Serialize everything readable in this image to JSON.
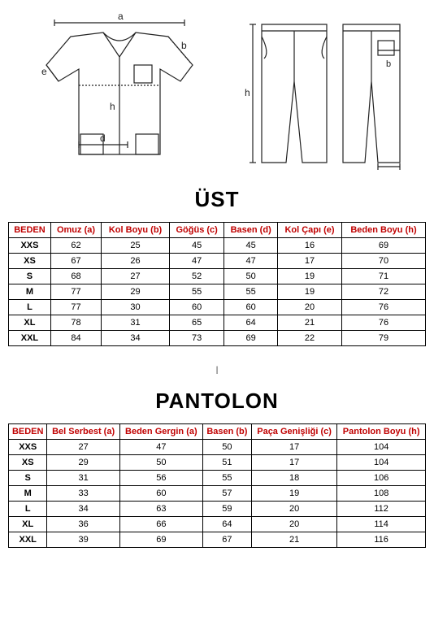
{
  "section1": {
    "title": "ÜST"
  },
  "section2": {
    "title": "PANTOLON"
  },
  "ustTable": {
    "headers": [
      "BEDEN",
      "Omuz (a)",
      "Kol Boyu (b)",
      "Göğüs (c)",
      "Basen (d)",
      "Kol Çapı (e)",
      "Beden Boyu (h)"
    ],
    "rows": [
      [
        "XXS",
        "62",
        "25",
        "45",
        "45",
        "16",
        "69"
      ],
      [
        "XS",
        "67",
        "26",
        "47",
        "47",
        "17",
        "70"
      ],
      [
        "S",
        "68",
        "27",
        "52",
        "50",
        "19",
        "71"
      ],
      [
        "M",
        "77",
        "29",
        "55",
        "55",
        "19",
        "72"
      ],
      [
        "L",
        "77",
        "30",
        "60",
        "60",
        "20",
        "76"
      ],
      [
        "XL",
        "78",
        "31",
        "65",
        "64",
        "21",
        "76"
      ],
      [
        "XXL",
        "84",
        "34",
        "73",
        "69",
        "22",
        "79"
      ]
    ]
  },
  "pantolonTable": {
    "headers": [
      "BEDEN",
      "Bel Serbest (a)",
      "Beden Gergin (a)",
      "Basen (b)",
      "Paça Genişliği (c)",
      "Pantolon Boyu (h)"
    ],
    "rows": [
      [
        "XXS",
        "27",
        "47",
        "50",
        "17",
        "104"
      ],
      [
        "XS",
        "29",
        "50",
        "51",
        "17",
        "104"
      ],
      [
        "S",
        "31",
        "56",
        "55",
        "18",
        "106"
      ],
      [
        "M",
        "33",
        "60",
        "57",
        "19",
        "108"
      ],
      [
        "L",
        "34",
        "63",
        "59",
        "20",
        "112"
      ],
      [
        "XL",
        "36",
        "66",
        "64",
        "20",
        "114"
      ],
      [
        "XXL",
        "39",
        "69",
        "67",
        "21",
        "116"
      ]
    ]
  },
  "colors": {
    "header": "#c00000",
    "border": "#000000",
    "line": "#222222"
  }
}
